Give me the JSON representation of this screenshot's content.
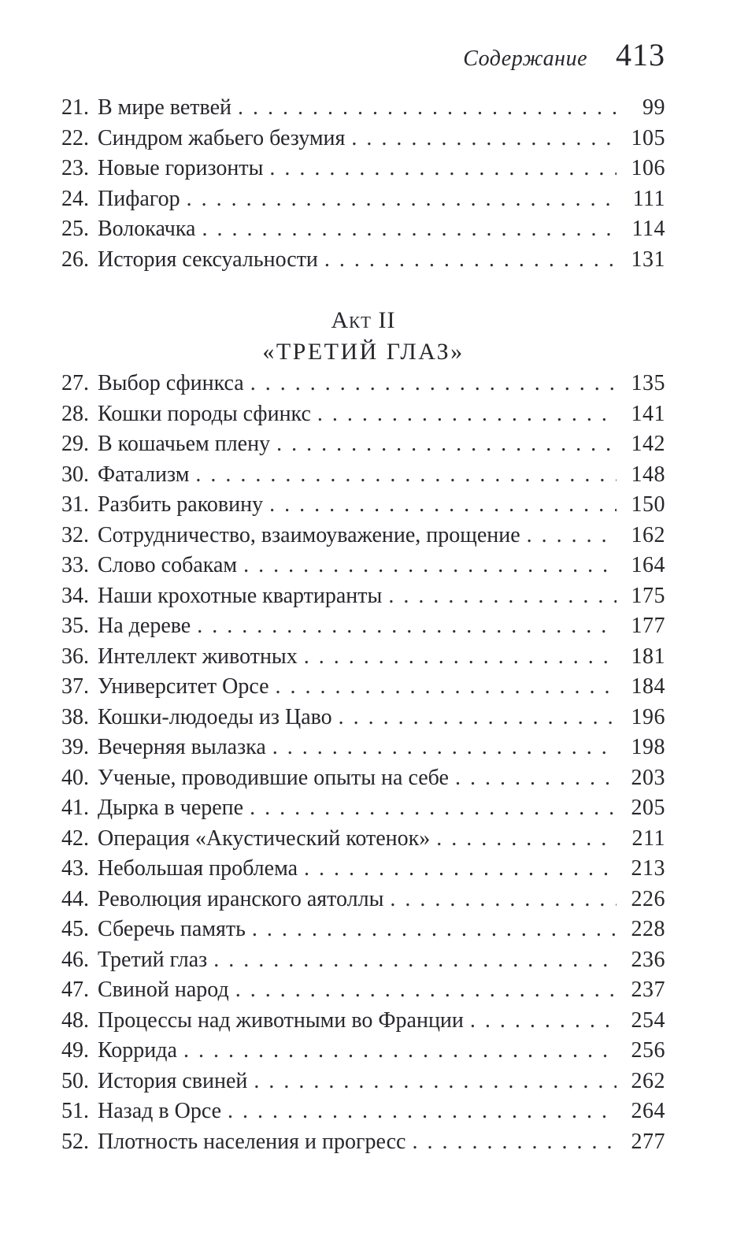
{
  "header": {
    "running_title": "Содержание",
    "page_number": "413"
  },
  "toc": {
    "heading": {
      "act": "Акт II",
      "title": "«ТРЕТИЙ ГЛАЗ»"
    },
    "part1": [
      {
        "num": "21.",
        "title": "В мире ветвей",
        "page": "99"
      },
      {
        "num": "22.",
        "title": "Синдром жабьего безумия",
        "page": "105"
      },
      {
        "num": "23.",
        "title": "Новые горизонты",
        "page": "106"
      },
      {
        "num": "24.",
        "title": "Пифагор",
        "page": "111"
      },
      {
        "num": "25.",
        "title": "Волокачка",
        "page": "114"
      },
      {
        "num": "26.",
        "title": "История сексуальности",
        "page": "131"
      }
    ],
    "part2": [
      {
        "num": "27.",
        "title": "Выбор сфинкса",
        "page": "135"
      },
      {
        "num": "28.",
        "title": "Кошки породы сфинкс",
        "page": "141"
      },
      {
        "num": "29.",
        "title": "В кошачьем плену",
        "page": "142"
      },
      {
        "num": "30.",
        "title": "Фатализм",
        "page": "148"
      },
      {
        "num": "31.",
        "title": "Разбить раковину",
        "page": "150"
      },
      {
        "num": "32.",
        "title": "Сотрудничество, взаимоуважение, прощение",
        "page": "162"
      },
      {
        "num": "33.",
        "title": "Слово собакам",
        "page": "164"
      },
      {
        "num": "34.",
        "title": "Наши крохотные квартиранты",
        "page": "175"
      },
      {
        "num": "35.",
        "title": "На дереве",
        "page": "177"
      },
      {
        "num": "36.",
        "title": "Интеллект животных",
        "page": "181"
      },
      {
        "num": "37.",
        "title": "Университет Орсе",
        "page": "184"
      },
      {
        "num": "38.",
        "title": "Кошки-людоеды из Цаво",
        "page": "196"
      },
      {
        "num": "39.",
        "title": "Вечерняя вылазка",
        "page": "198"
      },
      {
        "num": "40.",
        "title": "Ученые, проводившие опыты на себе",
        "page": "203"
      },
      {
        "num": "41.",
        "title": "Дырка в черепе",
        "page": "205"
      },
      {
        "num": "42.",
        "title": "Операция «Акустический котенок»",
        "page": "211"
      },
      {
        "num": "43.",
        "title": "Небольшая проблема",
        "page": "213"
      },
      {
        "num": "44.",
        "title": "Революция иранского аятоллы",
        "page": "226"
      },
      {
        "num": "45.",
        "title": "Сберечь память",
        "page": "228"
      },
      {
        "num": "46.",
        "title": "Третий глаз",
        "page": "236"
      },
      {
        "num": "47.",
        "title": "Свиной народ",
        "page": "237"
      },
      {
        "num": "48.",
        "title": "Процессы над животными во Франции",
        "page": "254"
      },
      {
        "num": "49.",
        "title": "Коррида",
        "page": "256"
      },
      {
        "num": "50.",
        "title": "История свиней",
        "page": "262"
      },
      {
        "num": "51.",
        "title": "Назад в Орсе",
        "page": "264"
      },
      {
        "num": "52.",
        "title": "Плотность населения и прогресс",
        "page": "277"
      }
    ]
  }
}
